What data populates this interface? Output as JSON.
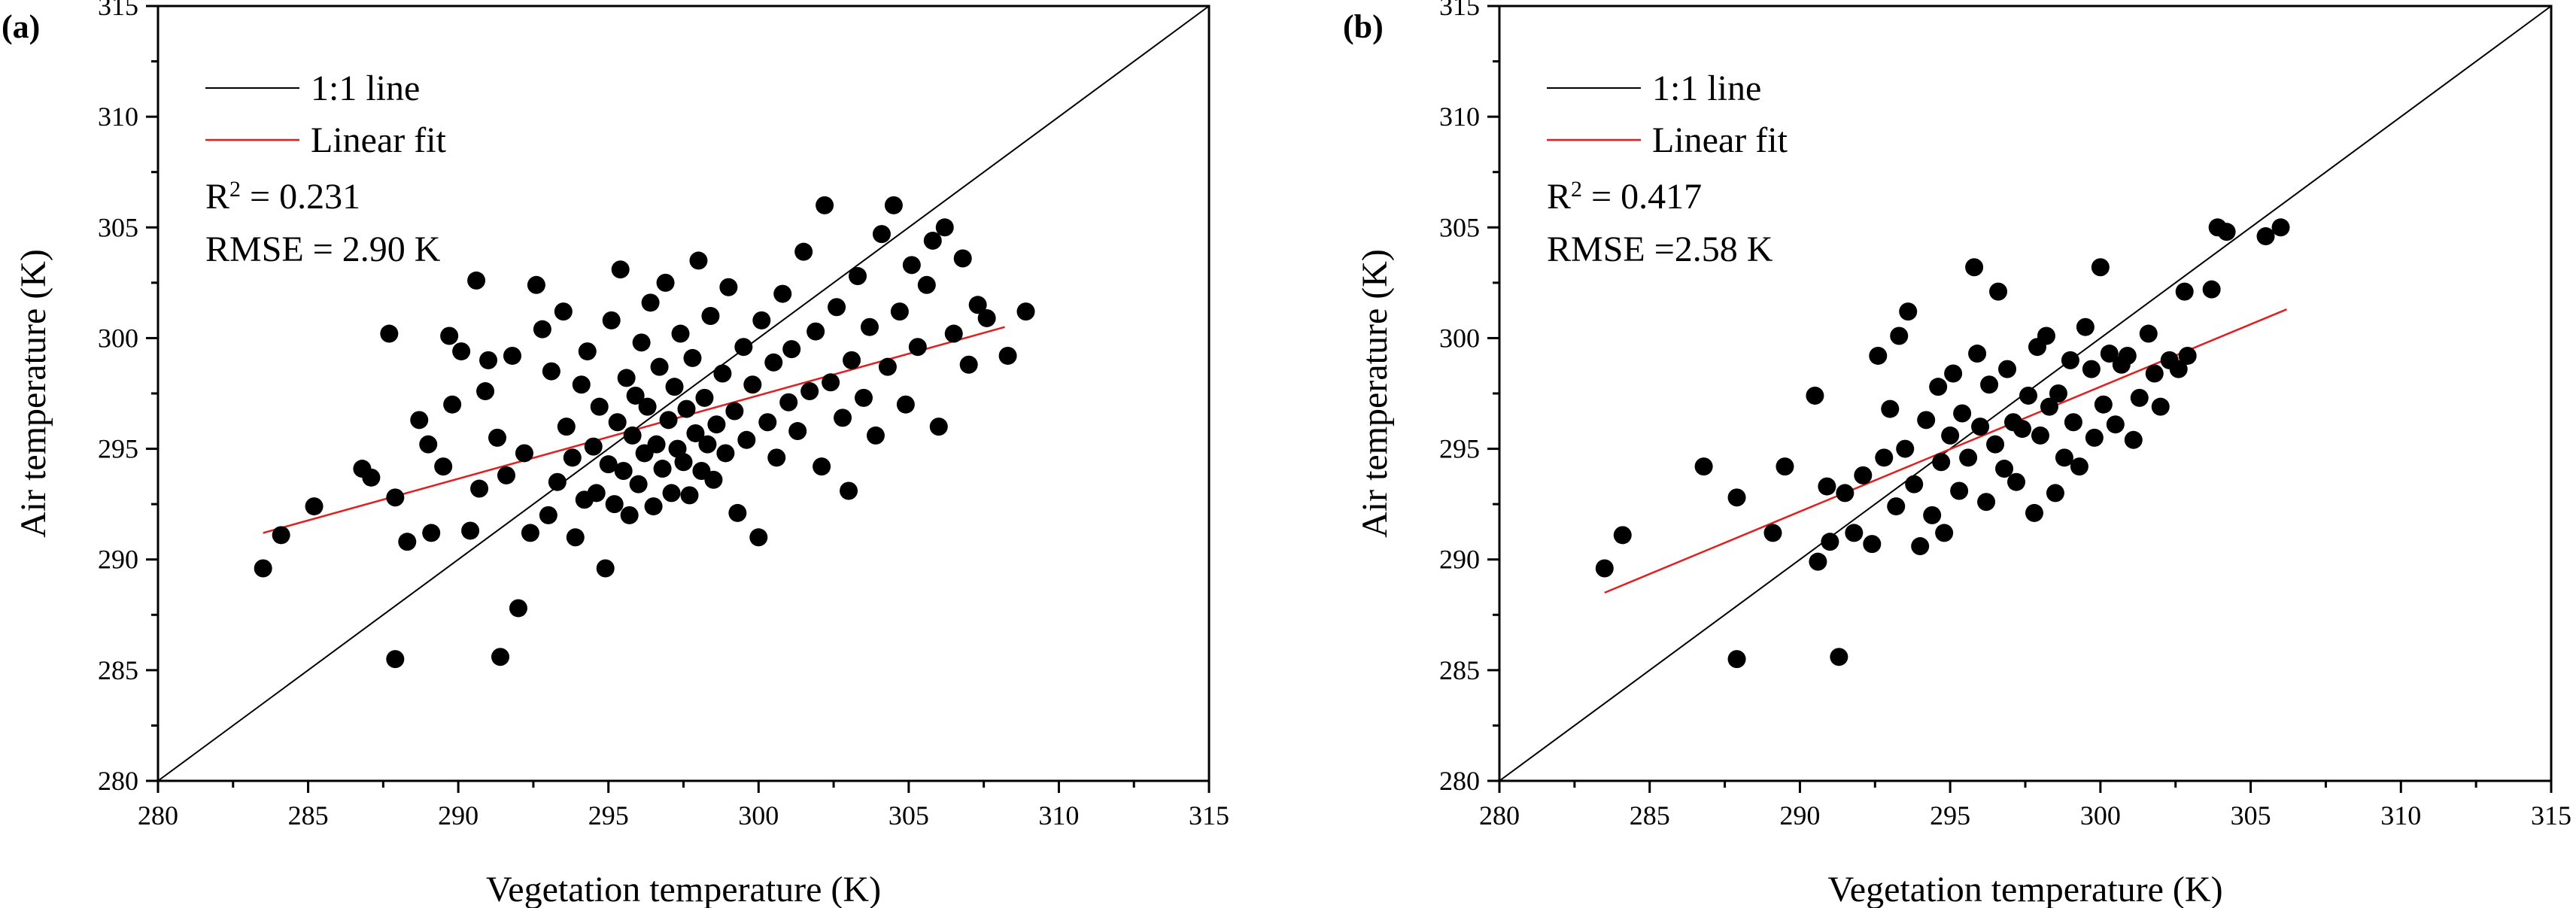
{
  "chart_data": [
    {
      "panel_label": "(a)",
      "type": "scatter",
      "xlabel": "Vegetation temperature (K)",
      "ylabel": "Air temperature (K)",
      "xlim": [
        280,
        315
      ],
      "ylim": [
        280,
        315
      ],
      "xticks": [
        280,
        285,
        290,
        295,
        300,
        305,
        310,
        315
      ],
      "yticks": [
        280,
        285,
        290,
        295,
        300,
        305,
        310,
        315
      ],
      "grid": false,
      "legend": [
        {
          "label": "1:1 line",
          "color": "#000000"
        },
        {
          "label": "Linear fit",
          "color": "#e02020"
        }
      ],
      "r2_prefix": "R",
      "r2_value": " = 0.231",
      "rmse_text": "RMSE = 2.90 K",
      "one_to_one": [
        [
          280,
          280
        ],
        [
          315,
          315
        ]
      ],
      "fit_line": [
        [
          283.5,
          291.2
        ],
        [
          308.2,
          300.5
        ]
      ],
      "point_color": "#000000",
      "points": [
        [
          283.5,
          289.6
        ],
        [
          284.1,
          291.1
        ],
        [
          285.2,
          292.4
        ],
        [
          286.8,
          294.1
        ],
        [
          287.1,
          293.7
        ],
        [
          287.7,
          300.2
        ],
        [
          287.9,
          285.5
        ],
        [
          287.9,
          292.8
        ],
        [
          288.3,
          290.8
        ],
        [
          288.7,
          296.3
        ],
        [
          289.0,
          295.2
        ],
        [
          289.1,
          291.2
        ],
        [
          289.5,
          294.2
        ],
        [
          289.7,
          300.1
        ],
        [
          289.8,
          297.0
        ],
        [
          290.1,
          299.4
        ],
        [
          290.4,
          291.3
        ],
        [
          290.6,
          302.6
        ],
        [
          290.7,
          293.2
        ],
        [
          290.9,
          297.6
        ],
        [
          291.0,
          299.0
        ],
        [
          291.3,
          295.5
        ],
        [
          291.4,
          285.6
        ],
        [
          291.6,
          293.8
        ],
        [
          291.8,
          299.2
        ],
        [
          292.0,
          287.8
        ],
        [
          292.2,
          294.8
        ],
        [
          292.4,
          291.2
        ],
        [
          292.6,
          302.4
        ],
        [
          292.8,
          300.4
        ],
        [
          293.0,
          292.0
        ],
        [
          293.1,
          298.5
        ],
        [
          293.3,
          293.5
        ],
        [
          293.5,
          301.2
        ],
        [
          293.6,
          296.0
        ],
        [
          293.8,
          294.6
        ],
        [
          293.9,
          291.0
        ],
        [
          294.1,
          297.9
        ],
        [
          294.2,
          292.7
        ],
        [
          294.3,
          299.4
        ],
        [
          294.5,
          295.1
        ],
        [
          294.6,
          293.0
        ],
        [
          294.7,
          296.9
        ],
        [
          294.9,
          289.6
        ],
        [
          295.0,
          294.3
        ],
        [
          295.1,
          300.8
        ],
        [
          295.2,
          292.5
        ],
        [
          295.3,
          296.2
        ],
        [
          295.4,
          303.1
        ],
        [
          295.5,
          294.0
        ],
        [
          295.6,
          298.2
        ],
        [
          295.7,
          292.0
        ],
        [
          295.8,
          295.6
        ],
        [
          295.9,
          297.4
        ],
        [
          296.0,
          293.4
        ],
        [
          296.1,
          299.8
        ],
        [
          296.2,
          294.8
        ],
        [
          296.3,
          296.9
        ],
        [
          296.4,
          301.6
        ],
        [
          296.5,
          292.4
        ],
        [
          296.6,
          295.2
        ],
        [
          296.7,
          298.7
        ],
        [
          296.8,
          294.1
        ],
        [
          296.9,
          302.5
        ],
        [
          297.0,
          296.3
        ],
        [
          297.1,
          293.0
        ],
        [
          297.2,
          297.8
        ],
        [
          297.3,
          295.0
        ],
        [
          297.4,
          300.2
        ],
        [
          297.5,
          294.4
        ],
        [
          297.6,
          296.8
        ],
        [
          297.7,
          292.9
        ],
        [
          297.8,
          299.1
        ],
        [
          297.9,
          295.7
        ],
        [
          298.0,
          303.5
        ],
        [
          298.1,
          294.0
        ],
        [
          298.2,
          297.3
        ],
        [
          298.3,
          295.2
        ],
        [
          298.4,
          301.0
        ],
        [
          298.5,
          293.6
        ],
        [
          298.6,
          296.1
        ],
        [
          298.8,
          298.4
        ],
        [
          298.9,
          294.8
        ],
        [
          299.0,
          302.3
        ],
        [
          299.2,
          296.7
        ],
        [
          299.3,
          292.1
        ],
        [
          299.5,
          299.6
        ],
        [
          299.6,
          295.4
        ],
        [
          299.8,
          297.9
        ],
        [
          300.0,
          291.0
        ],
        [
          300.1,
          300.8
        ],
        [
          300.3,
          296.2
        ],
        [
          300.5,
          298.9
        ],
        [
          300.6,
          294.6
        ],
        [
          300.8,
          302.0
        ],
        [
          301.0,
          297.1
        ],
        [
          301.1,
          299.5
        ],
        [
          301.3,
          295.8
        ],
        [
          301.5,
          303.9
        ],
        [
          301.7,
          297.6
        ],
        [
          301.9,
          300.3
        ],
        [
          302.1,
          294.2
        ],
        [
          302.2,
          306.0
        ],
        [
          302.4,
          298.0
        ],
        [
          302.6,
          301.4
        ],
        [
          302.8,
          296.4
        ],
        [
          303.0,
          293.1
        ],
        [
          303.1,
          299.0
        ],
        [
          303.3,
          302.8
        ],
        [
          303.5,
          297.3
        ],
        [
          303.7,
          300.5
        ],
        [
          303.9,
          295.6
        ],
        [
          304.1,
          304.7
        ],
        [
          304.3,
          298.7
        ],
        [
          304.5,
          306.0
        ],
        [
          304.7,
          301.2
        ],
        [
          304.9,
          297.0
        ],
        [
          305.1,
          303.3
        ],
        [
          305.3,
          299.6
        ],
        [
          305.6,
          302.4
        ],
        [
          305.8,
          304.4
        ],
        [
          306.0,
          296.0
        ],
        [
          306.2,
          305.0
        ],
        [
          306.5,
          300.2
        ],
        [
          306.8,
          303.6
        ],
        [
          307.0,
          298.8
        ],
        [
          307.3,
          301.5
        ],
        [
          307.6,
          300.9
        ],
        [
          308.3,
          299.2
        ],
        [
          308.9,
          301.2
        ]
      ]
    },
    {
      "panel_label": "(b)",
      "type": "scatter",
      "xlabel": "Vegetation temperature (K)",
      "ylabel": "Air temperature (K)",
      "xlim": [
        280,
        315
      ],
      "ylim": [
        280,
        315
      ],
      "xticks": [
        280,
        285,
        290,
        295,
        300,
        305,
        310,
        315
      ],
      "yticks": [
        280,
        285,
        290,
        295,
        300,
        305,
        310,
        315
      ],
      "grid": false,
      "legend": [
        {
          "label": "1:1 line",
          "color": "#000000"
        },
        {
          "label": "Linear fit",
          "color": "#e02020"
        }
      ],
      "r2_prefix": "R",
      "r2_value": " = 0.417",
      "rmse_text": "RMSE =2.58 K",
      "one_to_one": [
        [
          280,
          280
        ],
        [
          315,
          315
        ]
      ],
      "fit_line": [
        [
          283.5,
          288.5
        ],
        [
          306.2,
          301.3
        ]
      ],
      "point_color": "#000000",
      "points": [
        [
          283.5,
          289.6
        ],
        [
          284.1,
          291.1
        ],
        [
          286.8,
          294.2
        ],
        [
          287.9,
          292.8
        ],
        [
          287.9,
          285.5
        ],
        [
          289.1,
          291.2
        ],
        [
          289.5,
          294.2
        ],
        [
          290.5,
          297.4
        ],
        [
          290.6,
          289.9
        ],
        [
          290.9,
          293.3
        ],
        [
          291.0,
          290.8
        ],
        [
          291.3,
          285.6
        ],
        [
          291.5,
          293.0
        ],
        [
          291.8,
          291.2
        ],
        [
          292.1,
          293.8
        ],
        [
          292.4,
          290.7
        ],
        [
          292.6,
          299.2
        ],
        [
          292.8,
          294.6
        ],
        [
          293.0,
          296.8
        ],
        [
          293.2,
          292.4
        ],
        [
          293.3,
          300.1
        ],
        [
          293.5,
          295.0
        ],
        [
          293.6,
          301.2
        ],
        [
          293.8,
          293.4
        ],
        [
          294.0,
          290.6
        ],
        [
          294.2,
          296.3
        ],
        [
          294.4,
          292.0
        ],
        [
          294.6,
          297.8
        ],
        [
          294.7,
          294.4
        ],
        [
          294.8,
          291.2
        ],
        [
          295.0,
          295.6
        ],
        [
          295.1,
          298.4
        ],
        [
          295.3,
          293.1
        ],
        [
          295.4,
          296.6
        ],
        [
          295.6,
          294.6
        ],
        [
          295.8,
          303.2
        ],
        [
          295.9,
          299.3
        ],
        [
          296.0,
          296.0
        ],
        [
          296.2,
          292.6
        ],
        [
          296.3,
          297.9
        ],
        [
          296.5,
          295.2
        ],
        [
          296.6,
          302.1
        ],
        [
          296.8,
          294.1
        ],
        [
          296.9,
          298.6
        ],
        [
          297.1,
          296.2
        ],
        [
          297.2,
          293.5
        ],
        [
          297.4,
          295.9
        ],
        [
          297.6,
          297.4
        ],
        [
          297.8,
          292.1
        ],
        [
          297.9,
          299.6
        ],
        [
          298.0,
          295.6
        ],
        [
          298.2,
          300.1
        ],
        [
          298.3,
          296.9
        ],
        [
          298.5,
          293.0
        ],
        [
          298.6,
          297.5
        ],
        [
          298.8,
          294.6
        ],
        [
          299.0,
          299.0
        ],
        [
          299.1,
          296.2
        ],
        [
          299.3,
          294.2
        ],
        [
          299.5,
          300.5
        ],
        [
          299.7,
          298.6
        ],
        [
          299.8,
          295.5
        ],
        [
          300.0,
          303.2
        ],
        [
          300.1,
          297.0
        ],
        [
          300.3,
          299.3
        ],
        [
          300.5,
          296.1
        ],
        [
          300.7,
          298.8
        ],
        [
          300.9,
          299.2
        ],
        [
          301.1,
          295.4
        ],
        [
          301.3,
          297.3
        ],
        [
          301.6,
          300.2
        ],
        [
          301.8,
          298.4
        ],
        [
          302.0,
          296.9
        ],
        [
          302.3,
          299.0
        ],
        [
          302.6,
          298.6
        ],
        [
          302.8,
          302.1
        ],
        [
          302.9,
          299.2
        ],
        [
          303.7,
          302.2
        ],
        [
          303.9,
          305.0
        ],
        [
          304.2,
          304.8
        ],
        [
          305.5,
          304.6
        ],
        [
          306.0,
          305.0
        ]
      ]
    }
  ]
}
